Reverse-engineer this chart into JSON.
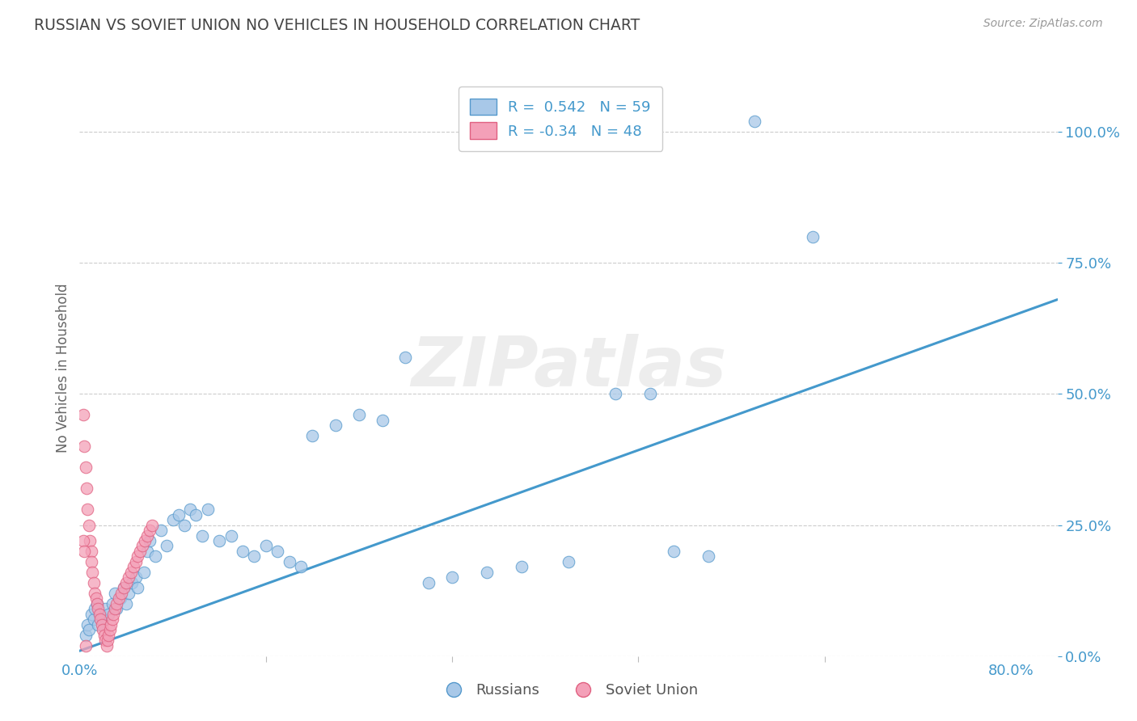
{
  "title": "RUSSIAN VS SOVIET UNION NO VEHICLES IN HOUSEHOLD CORRELATION CHART",
  "source": "Source: ZipAtlas.com",
  "ylabel": "No Vehicles in Household",
  "ytick_labels": [
    "0.0%",
    "25.0%",
    "50.0%",
    "75.0%",
    "100.0%"
  ],
  "ytick_vals": [
    0.0,
    0.25,
    0.5,
    0.75,
    1.0
  ],
  "xlim": [
    0.0,
    0.84
  ],
  "ylim": [
    0.0,
    1.1
  ],
  "r_russian": 0.542,
  "n_russian": 59,
  "r_soviet": -0.34,
  "n_soviet": 48,
  "legend_labels": [
    "Russians",
    "Soviet Union"
  ],
  "blue_fill": "#a8c8e8",
  "blue_edge": "#5599cc",
  "pink_fill": "#f4a0b8",
  "pink_edge": "#e06080",
  "line_color": "#4499cc",
  "watermark": "ZIPatlas",
  "background_color": "#ffffff",
  "grid_color": "#cccccc",
  "axis_label_color": "#4499cc",
  "title_color": "#444444",
  "trendline_x": [
    0.0,
    0.84
  ],
  "trendline_y": [
    0.01,
    0.68
  ],
  "russians_x": [
    0.005,
    0.007,
    0.008,
    0.01,
    0.012,
    0.013,
    0.015,
    0.016,
    0.018,
    0.02,
    0.022,
    0.025,
    0.028,
    0.03,
    0.032,
    0.035,
    0.038,
    0.04,
    0.042,
    0.045,
    0.048,
    0.05,
    0.055,
    0.058,
    0.06,
    0.065,
    0.07,
    0.075,
    0.08,
    0.085,
    0.09,
    0.095,
    0.1,
    0.105,
    0.11,
    0.12,
    0.13,
    0.14,
    0.15,
    0.16,
    0.17,
    0.18,
    0.19,
    0.2,
    0.22,
    0.24,
    0.26,
    0.28,
    0.3,
    0.32,
    0.35,
    0.38,
    0.42,
    0.46,
    0.49,
    0.51,
    0.54,
    0.58,
    0.63
  ],
  "russians_y": [
    0.04,
    0.06,
    0.05,
    0.08,
    0.07,
    0.09,
    0.1,
    0.06,
    0.08,
    0.07,
    0.09,
    0.08,
    0.1,
    0.12,
    0.09,
    0.11,
    0.13,
    0.1,
    0.12,
    0.14,
    0.15,
    0.13,
    0.16,
    0.2,
    0.22,
    0.19,
    0.24,
    0.21,
    0.26,
    0.27,
    0.25,
    0.28,
    0.27,
    0.23,
    0.28,
    0.22,
    0.23,
    0.2,
    0.19,
    0.21,
    0.2,
    0.18,
    0.17,
    0.42,
    0.44,
    0.46,
    0.45,
    0.57,
    0.14,
    0.15,
    0.16,
    0.17,
    0.18,
    0.5,
    0.5,
    0.2,
    0.19,
    1.02,
    0.8
  ],
  "soviet_x": [
    0.003,
    0.004,
    0.005,
    0.005,
    0.006,
    0.007,
    0.008,
    0.009,
    0.01,
    0.01,
    0.011,
    0.012,
    0.013,
    0.014,
    0.015,
    0.016,
    0.017,
    0.018,
    0.019,
    0.02,
    0.021,
    0.022,
    0.023,
    0.024,
    0.025,
    0.026,
    0.027,
    0.028,
    0.029,
    0.03,
    0.032,
    0.034,
    0.036,
    0.038,
    0.04,
    0.042,
    0.044,
    0.046,
    0.048,
    0.05,
    0.052,
    0.054,
    0.056,
    0.058,
    0.06,
    0.062,
    0.003,
    0.004
  ],
  "soviet_y": [
    0.46,
    0.4,
    0.36,
    0.02,
    0.32,
    0.28,
    0.25,
    0.22,
    0.2,
    0.18,
    0.16,
    0.14,
    0.12,
    0.11,
    0.1,
    0.09,
    0.08,
    0.07,
    0.06,
    0.05,
    0.04,
    0.03,
    0.02,
    0.03,
    0.04,
    0.05,
    0.06,
    0.07,
    0.08,
    0.09,
    0.1,
    0.11,
    0.12,
    0.13,
    0.14,
    0.15,
    0.16,
    0.17,
    0.18,
    0.19,
    0.2,
    0.21,
    0.22,
    0.23,
    0.24,
    0.25,
    0.22,
    0.2
  ]
}
